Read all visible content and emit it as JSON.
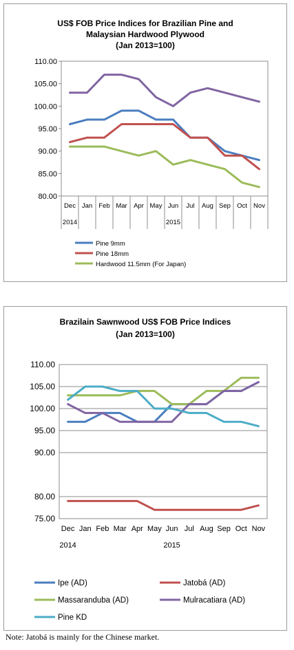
{
  "chart_data": [
    {
      "type": "line",
      "title_line1": "US$ FOB Price Indices for Brazilian Pine and",
      "title_line2": "Malaysian Hardwood Plywood",
      "title_line3": "(Jan 2013=100)",
      "categories": [
        "Dec",
        "Jan",
        "Feb",
        "Mar",
        "Apr",
        "May",
        "Jun",
        "Jul",
        "Aug",
        "Sep",
        "Oct",
        "Nov"
      ],
      "year_labels": [
        "2014",
        "2015"
      ],
      "ylim": [
        80,
        110
      ],
      "yticks": [
        "110.00",
        "105.00",
        "100.00",
        "95.00",
        "90.00",
        "85.00",
        "80.00"
      ],
      "grid": false,
      "legend_position": "bottom",
      "series": [
        {
          "name": "Pine 9mm",
          "color": "#4a7dbf",
          "values": [
            96,
            97,
            97,
            99,
            99,
            97,
            97,
            93,
            93,
            90,
            89,
            88
          ]
        },
        {
          "name": "Pine 18mm",
          "color": "#c0504d",
          "values": [
            92,
            93,
            93,
            96,
            96,
            96,
            96,
            93,
            93,
            89,
            89,
            86
          ]
        },
        {
          "name": "Hardwood 11.5mm (For Japan)",
          "color": "#9bbb59",
          "values": [
            91,
            91,
            91,
            90,
            89,
            90,
            87,
            88,
            87,
            86,
            83,
            82
          ]
        },
        {
          "name": "",
          "color": "#8064a2",
          "values": [
            103,
            103,
            107,
            107,
            106,
            102,
            100,
            103,
            104,
            103,
            102,
            101
          ]
        }
      ]
    },
    {
      "type": "line",
      "title_line1": "Brazilain Sawnwood US$ FOB Price Indices",
      "title_line2": "(Jan 2013=100)",
      "categories": [
        "Dec",
        "Jan",
        "Feb",
        "Mar",
        "Apr",
        "May",
        "Jun",
        "Jul",
        "Aug",
        "Sep",
        "Oct",
        "Nov"
      ],
      "year_labels": [
        "2014",
        "2015"
      ],
      "ylim": [
        75,
        110
      ],
      "yticks": [
        "110.00",
        "105.00",
        "100.00",
        "95.00",
        "90.00",
        "80.00",
        "75.00"
      ],
      "grid": true,
      "legend_position": "bottom",
      "series": [
        {
          "name": "Ipe (AD)",
          "color": "#4a7dbf",
          "values": [
            97,
            97,
            99,
            99,
            97,
            97,
            101,
            101,
            101,
            104,
            104,
            106
          ]
        },
        {
          "name": "Jatobá (AD)",
          "color": "#c0504d",
          "values": [
            79,
            79,
            79,
            79,
            79,
            77,
            77,
            77,
            77,
            77,
            77,
            78
          ]
        },
        {
          "name": "Massaranduba (AD)",
          "color": "#9bbb59",
          "values": [
            103,
            103,
            103,
            103,
            104,
            104,
            101,
            101,
            104,
            104,
            107,
            107
          ]
        },
        {
          "name": "Mulracatiara (AD)",
          "color": "#8064a2",
          "values": [
            101,
            99,
            99,
            97,
            97,
            97,
            97,
            101,
            101,
            104,
            104,
            106
          ]
        },
        {
          "name": "Pine KD",
          "color": "#4bacc6",
          "values": [
            102,
            105,
            105,
            104,
            104,
            100,
            100,
            99,
            99,
            97,
            97,
            96
          ]
        }
      ]
    }
  ],
  "note": "Note: Jatobá is mainly for the Chinese market."
}
